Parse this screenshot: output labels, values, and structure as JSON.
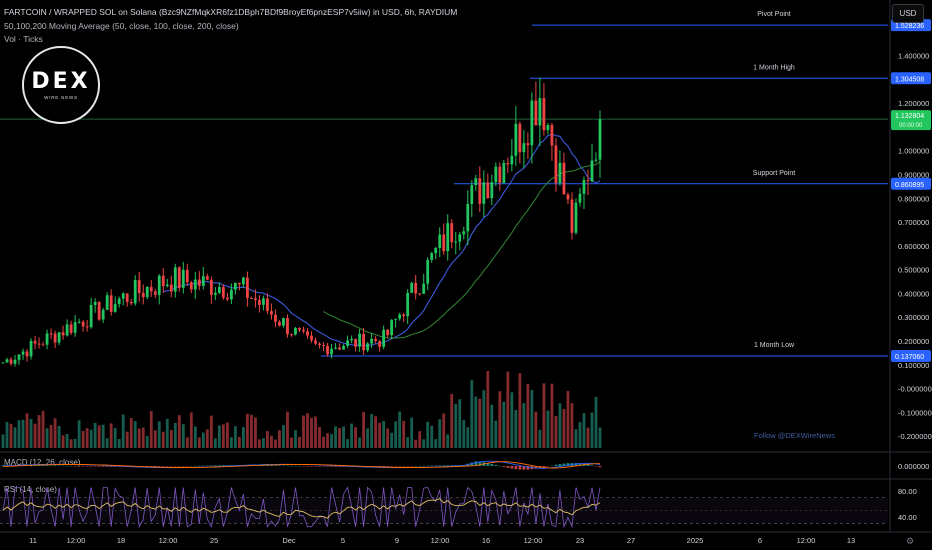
{
  "header": {
    "title": "FARTCOIN / WRAPPED SOL on Solana (Bzc9NZfMqkXR6fz1DBph7BDf9BroyEf6pnzESP7v5iiw) in USD, 6h, RAYDIUM",
    "ma": "50,100,200 Moving Average (50, close, 100, close, 200, close)",
    "vol": "Vol · Ticks"
  },
  "currency_button": "USD",
  "logo": {
    "text": "DEX",
    "subtext": "WIRE NEWS"
  },
  "watermark": "Follow @DEXWireNews",
  "colors": {
    "up": "#26a69a",
    "down": "#ef5350",
    "candle_up": "#22c55e",
    "candle_down": "#ef4444",
    "ma_blue": "#3b5bdb",
    "ma_green": "#2e7d32",
    "level": "#2962ff",
    "price": "#22c55e"
  },
  "chart_data": [
    {
      "type": "candlestick",
      "name": "price",
      "ylim": [
        -0.25,
        1.6
      ],
      "y_ticks": [
        "1.400000",
        "1.200000",
        "1.000000",
        "0.900000",
        "0.800000",
        "0.700000",
        "0.600000",
        "0.500000",
        "0.400000",
        "0.300000",
        "0.200000",
        "0.100000",
        "-0.000000",
        "-0.100000",
        "-0.200000"
      ],
      "x_ticks": [
        "11",
        "12:00",
        "18",
        "12:00",
        "25",
        "Dec",
        "5",
        "9",
        "12:00",
        "16",
        "12:00",
        "23",
        "27",
        "2025",
        "6",
        "12:00",
        "13"
      ],
      "levels": [
        {
          "label": "Pivot Point",
          "value": "1.528236",
          "y": 1.528236
        },
        {
          "label": "1 Month High",
          "value": "1.304508",
          "y": 1.304508
        },
        {
          "label": "Support Point",
          "value": "0.860895",
          "y": 0.860895
        },
        {
          "label": "1 Month Low",
          "value": "0.137060",
          "y": 0.13706
        }
      ],
      "last_price": {
        "value": "1.132804",
        "sub": "00:00:00",
        "y": 1.132804
      },
      "key_points": [
        {
          "t": 0,
          "close": 0.11
        },
        {
          "t": 0.2,
          "close": 0.38
        },
        {
          "t": 0.28,
          "close": 0.46
        },
        {
          "t": 0.4,
          "close": 0.42
        },
        {
          "t": 0.52,
          "close": 0.17
        },
        {
          "t": 0.64,
          "close": 0.21
        },
        {
          "t": 0.72,
          "close": 0.55
        },
        {
          "t": 0.8,
          "close": 0.85
        },
        {
          "t": 0.86,
          "close": 1.05
        },
        {
          "t": 0.9,
          "close": 1.25
        },
        {
          "t": 0.955,
          "close": 0.66
        },
        {
          "t": 1.0,
          "close": 1.13
        }
      ]
    },
    {
      "type": "bar",
      "name": "volume"
    },
    {
      "type": "line",
      "name": "MACD",
      "label": "MACD (12, 26, close)",
      "y_ticks": [
        "0.000000"
      ]
    },
    {
      "type": "line",
      "name": "RSI",
      "label": "RSI (14, close)",
      "y_ticks": [
        "80.00",
        "40.00"
      ]
    }
  ]
}
